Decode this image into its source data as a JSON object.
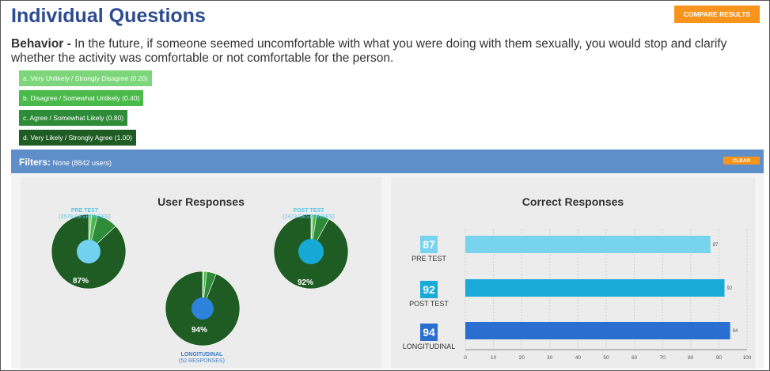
{
  "page": {
    "title": "Individual Questions",
    "compare_label": "COMPARE RESULTS"
  },
  "question": {
    "category": "Behavior -",
    "text": " In the future, if someone seemed uncomfortable with what you were doing with them sexually, you would stop and clarify whether the activity was comfortable or not comfortable for the person."
  },
  "answers": [
    {
      "label": "a. Very Unlikely / Strongly Disagree (0.20)",
      "color": "#7dd67b"
    },
    {
      "label": "b. Disagree / Somewhat Unlikely (0.40)",
      "color": "#4aba4b"
    },
    {
      "label": "c. Agree / Somewhat Likely (0.80)",
      "color": "#2e8b38"
    },
    {
      "label": "d. Very Likely / Strongly Agree (1.00)",
      "color": "#1e5c23"
    }
  ],
  "filters": {
    "label": "Filters:",
    "value": " None (8842 users)",
    "clear_label": "CLEAR"
  },
  "user_responses": {
    "title": "User Responses",
    "pies": [
      {
        "name": "PRE TEST",
        "sub": "(2578 RESPONSES)",
        "pct": "87%",
        "value": 87
      },
      {
        "name": "POST TEST",
        "sub": "(2473 RESPONSES)",
        "pct": "92%",
        "value": 92
      },
      {
        "name": "LONGITUDINAL",
        "sub": "(52 RESPONSES)",
        "pct": "94%",
        "value": 94
      }
    ]
  },
  "correct_responses": {
    "title": "Correct Responses"
  },
  "chart_data": {
    "type": "bar",
    "orientation": "horizontal",
    "title": "Correct Responses",
    "categories": [
      "PRE TEST",
      "POST TEST",
      "LONGITUDINAL"
    ],
    "values": [
      87,
      92,
      94
    ],
    "value_labels": [
      "87",
      "92",
      "94"
    ],
    "colors": [
      "#78d3ef",
      "#19aad8",
      "#2a6fcf"
    ],
    "xlim": [
      0,
      100
    ],
    "xticks": [
      "0",
      "10",
      "20",
      "30",
      "40",
      "50",
      "60",
      "70",
      "80",
      "90",
      "100"
    ],
    "grid": true
  }
}
